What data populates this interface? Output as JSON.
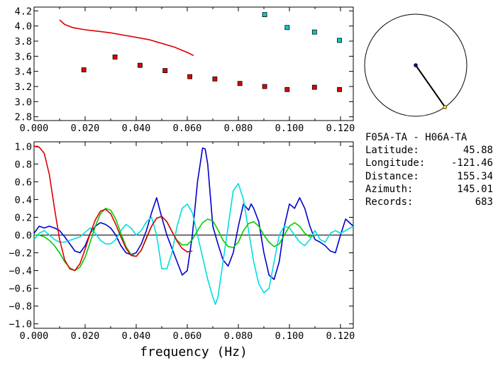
{
  "station_pair": "F05A-TA - H06A-TA",
  "info": [
    {
      "key": "Latitude:",
      "value": "45.88"
    },
    {
      "key": "Longitude:",
      "value": "-121.46"
    },
    {
      "key": "Distance:",
      "value": "155.34"
    },
    {
      "key": "Azimuth:",
      "value": "145.01"
    },
    {
      "key": "Records:",
      "value": "683"
    }
  ],
  "xlabel": "frequency (Hz)",
  "chart_data": [
    {
      "type": "scatter",
      "title": "",
      "xlim": [
        0.0,
        0.125
      ],
      "ylim": [
        2.75,
        4.25
      ],
      "x_ticks": [
        "0.000",
        "0.020",
        "0.040",
        "0.060",
        "0.080",
        "0.100",
        "0.120"
      ],
      "y_ticks": [
        "2.8",
        "3.0",
        "3.2",
        "3.4",
        "3.6",
        "3.8",
        "4.0",
        "4.2"
      ],
      "series": [
        {
          "color": "#dd0000",
          "marker": "square",
          "x": [
            0.0195,
            0.0317,
            0.0415,
            0.0513,
            0.061,
            0.0708,
            0.0806,
            0.0903,
            0.0991,
            0.1098,
            0.1196
          ],
          "y": [
            3.42,
            3.59,
            3.48,
            3.41,
            3.33,
            3.3,
            3.24,
            3.2,
            3.16,
            3.19,
            3.16
          ]
        },
        {
          "color": "#00cccc",
          "marker": "square",
          "x": [
            0.0903,
            0.0991,
            0.1098,
            0.1196
          ],
          "y": [
            4.15,
            3.98,
            3.92,
            3.81
          ]
        },
        {
          "color": "#dd0000",
          "marker": "line",
          "x": [
            0.01,
            0.012,
            0.015,
            0.02,
            0.025,
            0.03,
            0.035,
            0.04,
            0.045,
            0.05,
            0.055,
            0.06,
            0.0625
          ],
          "y": [
            4.08,
            4.02,
            3.98,
            3.95,
            3.93,
            3.91,
            3.88,
            3.85,
            3.82,
            3.77,
            3.72,
            3.65,
            3.61
          ]
        }
      ]
    },
    {
      "type": "line",
      "title": "",
      "xlim": [
        0.0,
        0.125
      ],
      "ylim": [
        -1.05,
        1.05
      ],
      "x_ticks": [
        "0.000",
        "0.020",
        "0.040",
        "0.060",
        "0.080",
        "0.100",
        "0.120"
      ],
      "y_ticks": [
        "1.0",
        "0.8",
        "0.6",
        "0.4",
        "0.2",
        "0.0",
        "-0.2",
        "-0.4",
        "-0.6",
        "-0.8",
        "-1.0"
      ],
      "zero_line": true,
      "series": [
        {
          "color": "#0000cc",
          "x": [
            0.0,
            0.002,
            0.004,
            0.006,
            0.008,
            0.01,
            0.012,
            0.014,
            0.016,
            0.018,
            0.02,
            0.022,
            0.024,
            0.026,
            0.028,
            0.03,
            0.032,
            0.034,
            0.036,
            0.038,
            0.04,
            0.042,
            0.044,
            0.046,
            0.048,
            0.05,
            0.052,
            0.054,
            0.056,
            0.058,
            0.06,
            0.062,
            0.064,
            0.066,
            0.067,
            0.068,
            0.07,
            0.072,
            0.074,
            0.076,
            0.078,
            0.08,
            0.082,
            0.084,
            0.085,
            0.086,
            0.088,
            0.09,
            0.092,
            0.094,
            0.096,
            0.098,
            0.1,
            0.102,
            0.104,
            0.106,
            0.108,
            0.11,
            0.112,
            0.114,
            0.116,
            0.118,
            0.12,
            0.122,
            0.125
          ],
          "y": [
            0.02,
            0.1,
            0.08,
            0.1,
            0.08,
            0.05,
            -0.02,
            -0.1,
            -0.18,
            -0.2,
            -0.12,
            0.02,
            0.1,
            0.14,
            0.12,
            0.08,
            0.0,
            -0.12,
            -0.2,
            -0.22,
            -0.2,
            -0.1,
            0.05,
            0.25,
            0.42,
            0.2,
            0.0,
            -0.15,
            -0.3,
            -0.45,
            -0.4,
            0.0,
            0.6,
            0.98,
            0.97,
            0.8,
            0.1,
            -0.1,
            -0.28,
            -0.35,
            -0.2,
            0.1,
            0.35,
            0.28,
            0.35,
            0.3,
            0.15,
            -0.2,
            -0.45,
            -0.5,
            -0.3,
            0.1,
            0.35,
            0.3,
            0.42,
            0.3,
            0.1,
            -0.05,
            -0.08,
            -0.12,
            -0.18,
            -0.2,
            0.0,
            0.18,
            0.1
          ]
        },
        {
          "color": "#00dddd",
          "x": [
            0.0,
            0.002,
            0.004,
            0.006,
            0.008,
            0.01,
            0.012,
            0.014,
            0.016,
            0.018,
            0.02,
            0.022,
            0.024,
            0.026,
            0.028,
            0.03,
            0.032,
            0.034,
            0.036,
            0.038,
            0.04,
            0.042,
            0.044,
            0.046,
            0.048,
            0.05,
            0.052,
            0.054,
            0.056,
            0.058,
            0.06,
            0.062,
            0.064,
            0.066,
            0.068,
            0.07,
            0.071,
            0.072,
            0.074,
            0.076,
            0.078,
            0.08,
            0.082,
            0.084,
            0.086,
            0.088,
            0.09,
            0.092,
            0.094,
            0.096,
            0.098,
            0.1,
            0.102,
            0.104,
            0.106,
            0.108,
            0.11,
            0.112,
            0.114,
            0.116,
            0.118,
            0.12,
            0.122,
            0.125
          ],
          "y": [
            -0.05,
            0.02,
            0.05,
            0.0,
            -0.05,
            -0.08,
            -0.08,
            -0.06,
            -0.04,
            -0.02,
            0.03,
            0.08,
            0.02,
            -0.06,
            -0.1,
            -0.1,
            -0.05,
            0.05,
            0.12,
            0.08,
            0.0,
            0.05,
            0.15,
            0.2,
            0.0,
            -0.38,
            -0.38,
            -0.2,
            0.1,
            0.3,
            0.35,
            0.25,
            0.0,
            -0.25,
            -0.5,
            -0.7,
            -0.78,
            -0.7,
            -0.3,
            0.1,
            0.5,
            0.58,
            0.4,
            0.05,
            -0.3,
            -0.55,
            -0.65,
            -0.6,
            -0.3,
            0.0,
            0.1,
            0.08,
            0.0,
            -0.08,
            -0.12,
            -0.05,
            0.05,
            -0.05,
            -0.08,
            0.02,
            0.05,
            0.02,
            0.05,
            0.1
          ]
        },
        {
          "color": "#00cc00",
          "x": [
            0.0,
            0.002,
            0.004,
            0.006,
            0.008,
            0.01,
            0.012,
            0.014,
            0.016,
            0.018,
            0.02,
            0.022,
            0.024,
            0.026,
            0.028,
            0.03,
            0.032,
            0.034,
            0.036,
            0.038,
            0.04,
            0.042,
            0.044,
            0.046,
            0.048,
            0.05,
            0.052,
            0.054,
            0.056,
            0.058,
            0.06,
            0.062,
            0.064,
            0.066,
            0.068,
            0.07,
            0.072,
            0.074,
            0.076,
            0.078,
            0.08,
            0.082,
            0.084,
            0.086,
            0.088,
            0.09,
            0.092,
            0.094,
            0.096,
            0.098,
            0.1,
            0.102,
            0.104,
            0.106,
            0.108,
            0.11
          ],
          "y": [
            0.0,
            0.0,
            -0.02,
            -0.06,
            -0.12,
            -0.2,
            -0.3,
            -0.37,
            -0.4,
            -0.36,
            -0.25,
            -0.08,
            0.1,
            0.24,
            0.3,
            0.28,
            0.18,
            0.02,
            -0.13,
            -0.22,
            -0.24,
            -0.17,
            -0.04,
            0.1,
            0.19,
            0.21,
            0.15,
            0.04,
            -0.06,
            -0.11,
            -0.11,
            -0.05,
            0.05,
            0.14,
            0.18,
            0.16,
            0.06,
            -0.06,
            -0.13,
            -0.14,
            -0.08,
            0.05,
            0.13,
            0.15,
            0.1,
            0.0,
            -0.08,
            -0.13,
            -0.1,
            0.0,
            0.1,
            0.14,
            0.1,
            0.02,
            -0.02,
            0.0
          ]
        },
        {
          "color": "#dd0000",
          "x": [
            0.0,
            0.002,
            0.004,
            0.006,
            0.008,
            0.01,
            0.012,
            0.014,
            0.016,
            0.018,
            0.02,
            0.022,
            0.024,
            0.026,
            0.028,
            0.03,
            0.032,
            0.034,
            0.036,
            0.038,
            0.04,
            0.042,
            0.044,
            0.046,
            0.048,
            0.05,
            0.052,
            0.054,
            0.056,
            0.058,
            0.06,
            0.062
          ],
          "y": [
            1.0,
            0.99,
            0.92,
            0.68,
            0.3,
            -0.05,
            -0.28,
            -0.38,
            -0.4,
            -0.32,
            -0.16,
            0.02,
            0.17,
            0.27,
            0.29,
            0.24,
            0.12,
            -0.02,
            -0.15,
            -0.23,
            -0.24,
            -0.17,
            -0.03,
            0.1,
            0.19,
            0.21,
            0.15,
            0.04,
            -0.07,
            -0.15,
            -0.19,
            -0.18
          ]
        }
      ]
    }
  ],
  "map": {
    "circle_color": "#000000",
    "station_a": {
      "dx": 0.0,
      "dy": 0.0,
      "color": "#000088"
    },
    "station_b": {
      "azimuth_deg": 145.01,
      "color": "#ffdd00"
    }
  }
}
